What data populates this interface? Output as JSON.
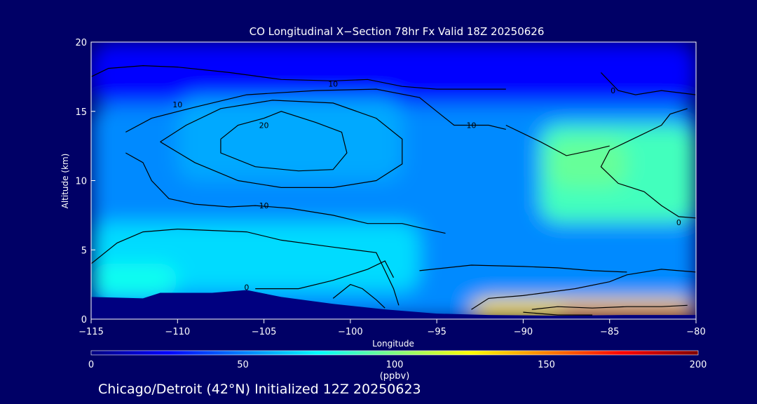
{
  "chart_data": {
    "type": "heatmap",
    "title": "CO Longitudinal X−Section 78hr  Fx Valid 18Z 20250626",
    "xlabel": "Longitude",
    "ylabel": "Altitude (km)",
    "xlim": [
      -115,
      -80
    ],
    "ylim": [
      0,
      20
    ],
    "xticks": [
      -115,
      -110,
      -105,
      -100,
      -95,
      -90,
      -85,
      -80
    ],
    "xtick_labels": [
      "−115",
      "−110",
      "−105",
      "−100",
      "−95",
      "−90",
      "−85",
      "−80"
    ],
    "yticks": [
      0,
      5,
      10,
      15,
      20
    ],
    "ytick_labels": [
      "0",
      "5",
      "10",
      "15",
      "20"
    ],
    "colorbar": {
      "min": 0,
      "max": 200,
      "ticks": [
        0,
        50,
        100,
        150,
        200
      ],
      "tick_labels": [
        "0",
        "50",
        "100",
        "150",
        "200"
      ],
      "unit": "(ppbv)",
      "colors": [
        "#000080",
        "#0000ff",
        "#0080ff",
        "#00ffff",
        "#80ff80",
        "#ffff00",
        "#ff8000",
        "#ff0000",
        "#800000"
      ]
    },
    "field_regions": [
      {
        "lon": [
          -115,
          -80
        ],
        "alt": [
          15.5,
          20
        ],
        "value": 25
      },
      {
        "lon": [
          -115,
          -80
        ],
        "alt": [
          0,
          15.5
        ],
        "value": 52
      },
      {
        "lon": [
          -110,
          -97
        ],
        "alt": [
          10,
          16
        ],
        "value": 58
      },
      {
        "lon": [
          -115,
          -96
        ],
        "alt": [
          2,
          7
        ],
        "value": 68
      },
      {
        "lon": [
          -89,
          -80
        ],
        "alt": [
          7,
          14
        ],
        "value": 88
      },
      {
        "lon": [
          -88.5,
          -84
        ],
        "alt": [
          9.5,
          13
        ],
        "value": 95
      },
      {
        "lon": [
          -115,
          -110
        ],
        "alt": [
          1.6,
          4
        ],
        "value": 78
      },
      {
        "lon": [
          -93,
          -80
        ],
        "alt": [
          0,
          1.4
        ],
        "value": 130
      },
      {
        "lon": [
          -88,
          -80
        ],
        "alt": [
          0,
          0.6
        ],
        "value": 180
      }
    ],
    "terrain_km": [
      [
        -115,
        1.6
      ],
      [
        -112,
        1.5
      ],
      [
        -111,
        1.9
      ],
      [
        -108,
        1.9
      ],
      [
        -106,
        2.1
      ],
      [
        -104,
        1.6
      ],
      [
        -101,
        1.1
      ],
      [
        -98,
        0.7
      ],
      [
        -95,
        0.4
      ],
      [
        -92,
        0.3
      ],
      [
        -88,
        0.25
      ],
      [
        -84,
        0.3
      ],
      [
        -80,
        0.3
      ]
    ],
    "contour_labels": [
      {
        "text": "10",
        "lon": -101,
        "alt": 17
      },
      {
        "text": "10",
        "lon": -110,
        "alt": 15.5
      },
      {
        "text": "20",
        "lon": -105,
        "alt": 14
      },
      {
        "text": "10",
        "lon": -93,
        "alt": 14
      },
      {
        "text": "10",
        "lon": -105,
        "alt": 8.2
      },
      {
        "text": "0",
        "lon": -84.8,
        "alt": 16.5
      },
      {
        "text": "0",
        "lon": -81,
        "alt": 7
      },
      {
        "text": "0",
        "lon": -106,
        "alt": 2.3
      }
    ]
  },
  "caption": "Chicago/Detroit (42°N) Initialized 12Z 20250623"
}
